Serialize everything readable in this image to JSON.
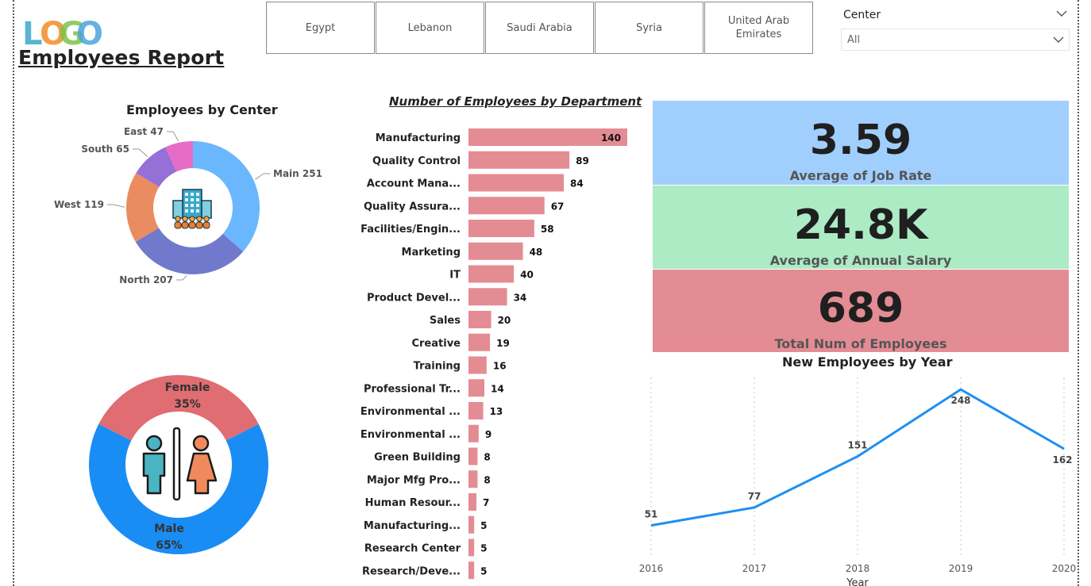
{
  "header": {
    "logo_text": "LOGO",
    "title": "Employees Report"
  },
  "country_slicer": {
    "items": [
      "Egypt",
      "Lebanon",
      "Saudi Arabia",
      "Syria",
      "United Arab Emirates"
    ]
  },
  "center_filter": {
    "label": "Center",
    "value": "All"
  },
  "kpis": {
    "job_rate": {
      "value": "3.59",
      "label": "Average of Job Rate",
      "color": "#a0cefd"
    },
    "salary": {
      "value": "24.8K",
      "label": "Average of Annual Salary",
      "color": "#acebc4"
    },
    "employees": {
      "value": "689",
      "label": "Total Num of Employees",
      "color": "#e48c93"
    }
  },
  "chart_data": [
    {
      "type": "pie",
      "title": "Employees by Center",
      "categories": [
        "Main",
        "North",
        "West",
        "South",
        "East"
      ],
      "values": [
        251,
        207,
        119,
        65,
        47
      ],
      "labels": [
        "Main 251",
        "North 207",
        "West 119",
        "South 65",
        "East 47"
      ],
      "colors": [
        "#6ab7fd",
        "#7079cb",
        "#ea8c60",
        "#9570d6",
        "#e56dc5"
      ],
      "icon": "office-building-people-icon"
    },
    {
      "type": "bar",
      "title": "Number of Employees by Department",
      "categories": [
        "Manufacturing",
        "Quality Control",
        "Account Mana...",
        "Quality Assura...",
        "Facilities/Engin...",
        "Marketing",
        "IT",
        "Product Devel...",
        "Sales",
        "Creative",
        "Training",
        "Professional Tr...",
        "Environmental ...",
        "Environmental ...",
        "Green Building",
        "Major Mfg Pro...",
        "Human Resour...",
        "Manufacturing...",
        "Research Center",
        "Research/Deve..."
      ],
      "values": [
        140,
        89,
        84,
        67,
        58,
        48,
        40,
        34,
        20,
        19,
        16,
        14,
        13,
        9,
        8,
        8,
        7,
        5,
        5,
        5
      ],
      "color": "#e48c93"
    },
    {
      "type": "pie",
      "categories": [
        "Female",
        "Male"
      ],
      "values": [
        35,
        65
      ],
      "labels": [
        "Female",
        "Male"
      ],
      "percent_labels": [
        "35%",
        "65%"
      ],
      "colors": [
        "#df6d72",
        "#1a8df5"
      ],
      "icon": "restroom-icon"
    },
    {
      "type": "line",
      "title": "New Employees by Year",
      "xlabel": "Year",
      "x": [
        "2016",
        "2017",
        "2018",
        "2019",
        "2020"
      ],
      "values": [
        51,
        77,
        151,
        248,
        162
      ],
      "color": "#1f8ff0",
      "ylim": [
        0,
        270
      ]
    }
  ]
}
